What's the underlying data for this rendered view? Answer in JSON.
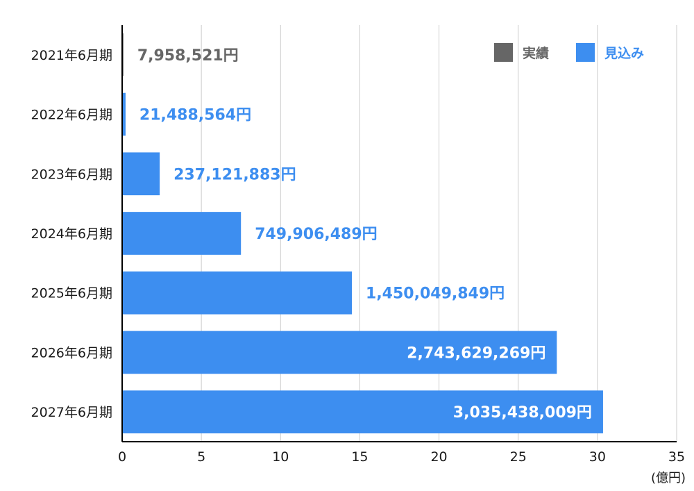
{
  "chart_data": {
    "type": "bar",
    "orientation": "horizontal",
    "categories": [
      "2021年6月期",
      "2022年6月期",
      "2023年6月期",
      "2024年6月期",
      "2025年6月期",
      "2026年6月期",
      "2027年6月期"
    ],
    "values": [
      0.07958521,
      0.21488564,
      2.37121883,
      7.49906489,
      14.50049849,
      27.43629269,
      30.35438009
    ],
    "value_labels": [
      "7,958,521円",
      "21,488,564円",
      "237,121,883円",
      "749,906,489円",
      "1,450,049,849円",
      "2,743,629,269円",
      "3,035,438,009円"
    ],
    "series_kind": [
      "actual",
      "forecast",
      "forecast",
      "forecast",
      "forecast",
      "forecast",
      "forecast"
    ],
    "xlim": [
      0,
      35
    ],
    "xticks": [
      0,
      5,
      10,
      15,
      20,
      25,
      30,
      35
    ],
    "xunit": "(億円)",
    "grid": true,
    "legend_position": "top-right",
    "legend": [
      {
        "key": "actual",
        "label": "実績",
        "color": "#666666"
      },
      {
        "key": "forecast",
        "label": "見込み",
        "color": "#3d8ef0"
      }
    ]
  }
}
